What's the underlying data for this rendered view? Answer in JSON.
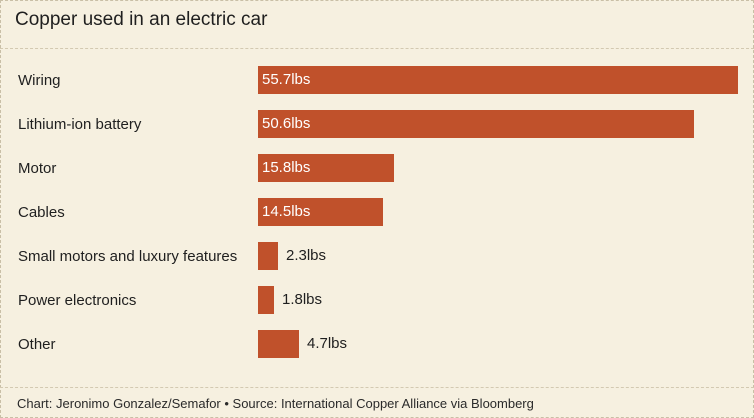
{
  "chart_data": {
    "type": "bar",
    "orientation": "horizontal",
    "title": "Copper used in an electric car",
    "unit": "lbs",
    "categories": [
      "Wiring",
      "Lithium-ion battery",
      "Motor",
      "Cables",
      "Small motors and luxury features",
      "Power electronics",
      "Other"
    ],
    "values": [
      55.7,
      50.6,
      15.8,
      14.5,
      2.3,
      1.8,
      4.7
    ],
    "value_labels": [
      "55.7lbs",
      "50.6lbs",
      "15.8lbs",
      "14.5lbs",
      "2.3lbs",
      "1.8lbs",
      "4.7lbs"
    ],
    "xlim": [
      0,
      55.7
    ],
    "grid": false,
    "bar_color": "#c0512b"
  },
  "footer": {
    "credit": "Chart: Jeronimo Gonzalez/Semafor • Source: International Copper Alliance via Bloomberg"
  }
}
